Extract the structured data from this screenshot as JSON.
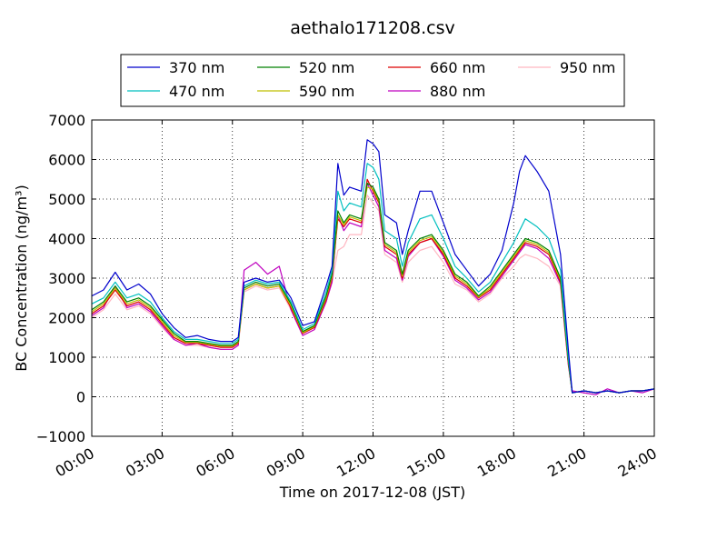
{
  "chart_data": {
    "type": "line",
    "title": "aethalo171208.csv",
    "xlabel": "Time on 2017-12-08 (JST)",
    "ylabel": "BC Concentration (ng/m³)",
    "ylim": [
      -1000,
      7000
    ],
    "yticks": [
      "−1000",
      "0",
      "1000",
      "2000",
      "3000",
      "4000",
      "5000",
      "6000",
      "7000"
    ],
    "xlim": [
      "00:00",
      "24:00"
    ],
    "xticks": [
      "00:00",
      "03:00",
      "06:00",
      "09:00",
      "12:00",
      "15:00",
      "18:00",
      "21:00",
      "24:00"
    ],
    "grid": true,
    "legend_position": "top-center",
    "series": [
      {
        "name": "370 nm",
        "color": "#0000cc",
        "x": [
          "00:00",
          "00:30",
          "01:00",
          "01:30",
          "02:00",
          "02:30",
          "03:00",
          "03:30",
          "04:00",
          "04:30",
          "05:00",
          "05:30",
          "06:00",
          "06:15",
          "06:30",
          "07:00",
          "07:30",
          "08:00",
          "08:30",
          "09:00",
          "09:30",
          "10:00",
          "10:15",
          "10:30",
          "10:45",
          "11:00",
          "11:30",
          "11:45",
          "12:00",
          "12:15",
          "12:30",
          "13:00",
          "13:15",
          "13:30",
          "14:00",
          "14:30",
          "15:00",
          "15:30",
          "16:00",
          "16:30",
          "17:00",
          "17:30",
          "18:00",
          "18:15",
          "18:30",
          "19:00",
          "19:30",
          "20:00",
          "20:20",
          "20:30",
          "21:00",
          "21:30",
          "22:00",
          "22:30",
          "23:00",
          "23:30",
          "24:00"
        ],
        "y": [
          2550,
          2700,
          3150,
          2700,
          2850,
          2600,
          2100,
          1750,
          1500,
          1550,
          1450,
          1400,
          1400,
          1500,
          2900,
          3000,
          2900,
          2950,
          2500,
          1800,
          1900,
          2800,
          3300,
          5900,
          5100,
          5300,
          5200,
          6500,
          6400,
          6200,
          4600,
          4400,
          3600,
          4200,
          5200,
          5200,
          4400,
          3600,
          3200,
          2800,
          3100,
          3700,
          4900,
          5700,
          6100,
          5700,
          5200,
          3600,
          1200,
          100,
          150,
          100,
          150,
          100,
          150,
          150,
          200
        ]
      },
      {
        "name": "470 nm",
        "color": "#00bfbf",
        "x": [
          "00:00",
          "00:30",
          "01:00",
          "01:30",
          "02:00",
          "02:30",
          "03:00",
          "03:30",
          "04:00",
          "04:30",
          "05:00",
          "05:30",
          "06:00",
          "06:15",
          "06:30",
          "07:00",
          "07:30",
          "08:00",
          "08:30",
          "09:00",
          "09:30",
          "10:00",
          "10:15",
          "10:30",
          "10:45",
          "11:00",
          "11:30",
          "11:45",
          "12:00",
          "12:15",
          "12:30",
          "13:00",
          "13:15",
          "13:30",
          "14:00",
          "14:30",
          "15:00",
          "15:30",
          "16:00",
          "16:30",
          "17:00",
          "17:30",
          "18:00",
          "18:15",
          "18:30",
          "19:00",
          "19:30",
          "20:00",
          "20:20",
          "20:30",
          "21:00",
          "21:30",
          "22:00",
          "22:30",
          "23:00",
          "23:30",
          "24:00"
        ],
        "y": [
          2350,
          2500,
          2900,
          2500,
          2600,
          2400,
          2000,
          1650,
          1450,
          1450,
          1400,
          1350,
          1350,
          1450,
          2800,
          2950,
          2850,
          2900,
          2400,
          1700,
          1850,
          2650,
          3200,
          5200,
          4700,
          4900,
          4800,
          5900,
          5800,
          5500,
          4200,
          4000,
          3300,
          3900,
          4500,
          4600,
          4000,
          3300,
          3000,
          2650,
          2900,
          3400,
          3900,
          4200,
          4500,
          4300,
          4000,
          3200,
          1000,
          100,
          150,
          100,
          150,
          100,
          150,
          150,
          200
        ]
      },
      {
        "name": "520 nm",
        "color": "#008000",
        "x": [
          "00:00",
          "00:30",
          "01:00",
          "01:30",
          "02:00",
          "02:30",
          "03:00",
          "03:30",
          "04:00",
          "04:30",
          "05:00",
          "05:30",
          "06:00",
          "06:15",
          "06:30",
          "07:00",
          "07:30",
          "08:00",
          "08:30",
          "09:00",
          "09:30",
          "10:00",
          "10:15",
          "10:30",
          "10:45",
          "11:00",
          "11:30",
          "11:45",
          "12:00",
          "12:15",
          "12:30",
          "13:00",
          "13:15",
          "13:30",
          "14:00",
          "14:30",
          "15:00",
          "15:30",
          "16:00",
          "16:30",
          "17:00",
          "17:30",
          "18:00",
          "18:15",
          "18:30",
          "19:00",
          "19:30",
          "20:00",
          "20:20",
          "20:30",
          "21:00",
          "21:30",
          "22:00",
          "22:30",
          "23:00",
          "23:30",
          "24:00"
        ],
        "y": [
          2200,
          2400,
          2800,
          2400,
          2500,
          2300,
          1950,
          1600,
          1400,
          1400,
          1350,
          1300,
          1300,
          1400,
          2750,
          2900,
          2800,
          2850,
          2350,
          1650,
          1800,
          2550,
          3100,
          4700,
          4400,
          4600,
          4500,
          5400,
          5300,
          5000,
          3900,
          3700,
          3100,
          3700,
          4000,
          4100,
          3700,
          3100,
          2900,
          2550,
          2800,
          3200,
          3600,
          3800,
          4000,
          3900,
          3700,
          3000,
          900,
          100,
          150,
          100,
          150,
          100,
          150,
          150,
          200
        ]
      },
      {
        "name": "590 nm",
        "color": "#bfbf00",
        "x": [
          "00:00",
          "00:30",
          "01:00",
          "01:30",
          "02:00",
          "02:30",
          "03:00",
          "03:30",
          "04:00",
          "04:30",
          "05:00",
          "05:30",
          "06:00",
          "06:15",
          "06:30",
          "07:00",
          "07:30",
          "08:00",
          "08:30",
          "09:00",
          "09:30",
          "10:00",
          "10:15",
          "10:30",
          "10:45",
          "11:00",
          "11:30",
          "11:45",
          "12:00",
          "12:15",
          "12:30",
          "13:00",
          "13:15",
          "13:30",
          "14:00",
          "14:30",
          "15:00",
          "15:30",
          "16:00",
          "16:30",
          "17:00",
          "17:30",
          "18:00",
          "18:15",
          "18:30",
          "19:00",
          "19:30",
          "20:00",
          "20:20",
          "20:30",
          "21:00",
          "21:30",
          "22:00",
          "22:30",
          "23:00",
          "23:30",
          "24:00"
        ],
        "y": [
          2150,
          2350,
          2750,
          2350,
          2450,
          2250,
          1900,
          1550,
          1380,
          1380,
          1330,
          1280,
          1280,
          1380,
          2700,
          2850,
          2750,
          2800,
          2300,
          1620,
          1780,
          2500,
          3050,
          4600,
          4350,
          4550,
          4450,
          5300,
          5250,
          4950,
          3850,
          3650,
          3050,
          3650,
          3950,
          4050,
          3650,
          3050,
          2850,
          2520,
          2750,
          3150,
          3550,
          3750,
          3950,
          3850,
          3650,
          2950,
          880,
          100,
          150,
          100,
          150,
          100,
          150,
          150,
          200
        ]
      },
      {
        "name": "660 nm",
        "color": "#dd0000",
        "x": [
          "00:00",
          "00:30",
          "01:00",
          "01:30",
          "02:00",
          "02:30",
          "03:00",
          "03:30",
          "04:00",
          "04:30",
          "05:00",
          "05:30",
          "06:00",
          "06:15",
          "06:30",
          "07:00",
          "07:30",
          "08:00",
          "08:30",
          "09:00",
          "09:30",
          "10:00",
          "10:15",
          "10:30",
          "10:45",
          "11:00",
          "11:30",
          "11:45",
          "12:00",
          "12:15",
          "12:30",
          "13:00",
          "13:15",
          "13:30",
          "14:00",
          "14:30",
          "15:00",
          "15:30",
          "16:00",
          "16:30",
          "17:00",
          "17:30",
          "18:00",
          "18:15",
          "18:30",
          "19:00",
          "19:30",
          "20:00",
          "20:20",
          "20:30",
          "21:00",
          "21:30",
          "22:00",
          "22:30",
          "23:00",
          "23:30",
          "24:00"
        ],
        "y": [
          2100,
          2300,
          2700,
          2300,
          2400,
          2200,
          1850,
          1500,
          1350,
          1350,
          1300,
          1250,
          1250,
          1350,
          2700,
          2850,
          2750,
          2800,
          2250,
          1600,
          1750,
          2450,
          3000,
          4500,
          4300,
          4500,
          4400,
          5500,
          5200,
          4900,
          3800,
          3600,
          3000,
          3600,
          3900,
          4000,
          3600,
          3000,
          2800,
          2500,
          2700,
          3100,
          3500,
          3700,
          3900,
          3800,
          3600,
          2900,
          850,
          100,
          150,
          100,
          150,
          100,
          150,
          150,
          200
        ]
      },
      {
        "name": "880 nm",
        "color": "#bf00bf",
        "x": [
          "00:00",
          "00:30",
          "01:00",
          "01:30",
          "02:00",
          "02:30",
          "03:00",
          "03:30",
          "04:00",
          "04:30",
          "05:00",
          "05:30",
          "06:00",
          "06:15",
          "06:30",
          "07:00",
          "07:30",
          "08:00",
          "08:30",
          "09:00",
          "09:30",
          "10:00",
          "10:15",
          "10:30",
          "10:45",
          "11:00",
          "11:30",
          "11:45",
          "12:00",
          "12:15",
          "12:30",
          "13:00",
          "13:15",
          "13:30",
          "14:00",
          "14:30",
          "15:00",
          "15:30",
          "16:00",
          "16:30",
          "17:00",
          "17:30",
          "18:00",
          "18:15",
          "18:30",
          "19:00",
          "19:30",
          "20:00",
          "20:20",
          "20:30",
          "21:00",
          "21:30",
          "22:00",
          "22:30",
          "23:00",
          "23:30",
          "24:00"
        ],
        "y": [
          2050,
          2250,
          2800,
          2250,
          2350,
          2150,
          1800,
          1450,
          1300,
          1350,
          1250,
          1200,
          1200,
          1300,
          3200,
          3400,
          3100,
          3300,
          2200,
          1550,
          1700,
          2400,
          2900,
          4600,
          4200,
          4400,
          4300,
          5400,
          5100,
          4800,
          3700,
          3500,
          2950,
          3550,
          3900,
          4000,
          3550,
          2950,
          2750,
          2450,
          2650,
          3050,
          3450,
          3650,
          3850,
          3750,
          3500,
          2850,
          800,
          150,
          100,
          50,
          200,
          100,
          150,
          100,
          200
        ]
      },
      {
        "name": "950 nm",
        "color": "#ffb6c1",
        "x": [
          "00:00",
          "00:30",
          "01:00",
          "01:30",
          "02:00",
          "02:30",
          "03:00",
          "03:30",
          "04:00",
          "04:30",
          "05:00",
          "05:30",
          "06:00",
          "06:15",
          "06:30",
          "07:00",
          "07:30",
          "08:00",
          "08:30",
          "09:00",
          "09:30",
          "10:00",
          "10:15",
          "10:30",
          "10:45",
          "11:00",
          "11:30",
          "11:45",
          "12:00",
          "12:15",
          "12:30",
          "13:00",
          "13:15",
          "13:30",
          "14:00",
          "14:30",
          "15:00",
          "15:30",
          "16:00",
          "16:30",
          "17:00",
          "17:30",
          "18:00",
          "18:15",
          "18:30",
          "19:00",
          "19:30",
          "20:00",
          "20:20",
          "20:30",
          "21:00",
          "21:30",
          "22:00",
          "22:30",
          "23:00",
          "23:30",
          "24:00"
        ],
        "y": [
          2000,
          2200,
          2600,
          2200,
          2300,
          2100,
          1750,
          1450,
          1300,
          1300,
          1250,
          1200,
          1200,
          1300,
          2650,
          2800,
          2700,
          2750,
          2200,
          1550,
          1700,
          2400,
          2900,
          3700,
          3800,
          4100,
          4100,
          5100,
          4900,
          4700,
          3600,
          3400,
          2900,
          3400,
          3700,
          3800,
          3400,
          2850,
          2700,
          2400,
          2600,
          3000,
          3300,
          3500,
          3600,
          3500,
          3300,
          2800,
          800,
          100,
          150,
          100,
          150,
          100,
          150,
          150,
          200
        ]
      }
    ]
  }
}
